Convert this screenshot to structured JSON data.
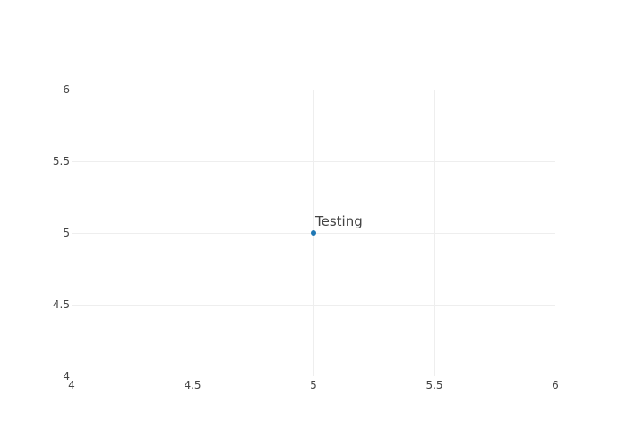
{
  "chart_data": {
    "type": "scatter",
    "title": "",
    "xlabel": "",
    "ylabel": "",
    "xlim": [
      4,
      6
    ],
    "ylim": [
      4,
      6
    ],
    "x_ticks": [
      4,
      4.5,
      5,
      5.5,
      6
    ],
    "y_ticks": [
      4,
      4.5,
      5,
      5.5,
      6
    ],
    "x_tick_labels": [
      "4",
      "4.5",
      "5",
      "5.5",
      "6"
    ],
    "y_tick_labels": [
      "4",
      "4.5",
      "5",
      "5.5",
      "6"
    ],
    "grid": true,
    "legend": "none",
    "series": [
      {
        "color": "#1f77b4",
        "points": [
          {
            "x": 5,
            "y": 5,
            "label": "Testing"
          }
        ]
      }
    ]
  }
}
